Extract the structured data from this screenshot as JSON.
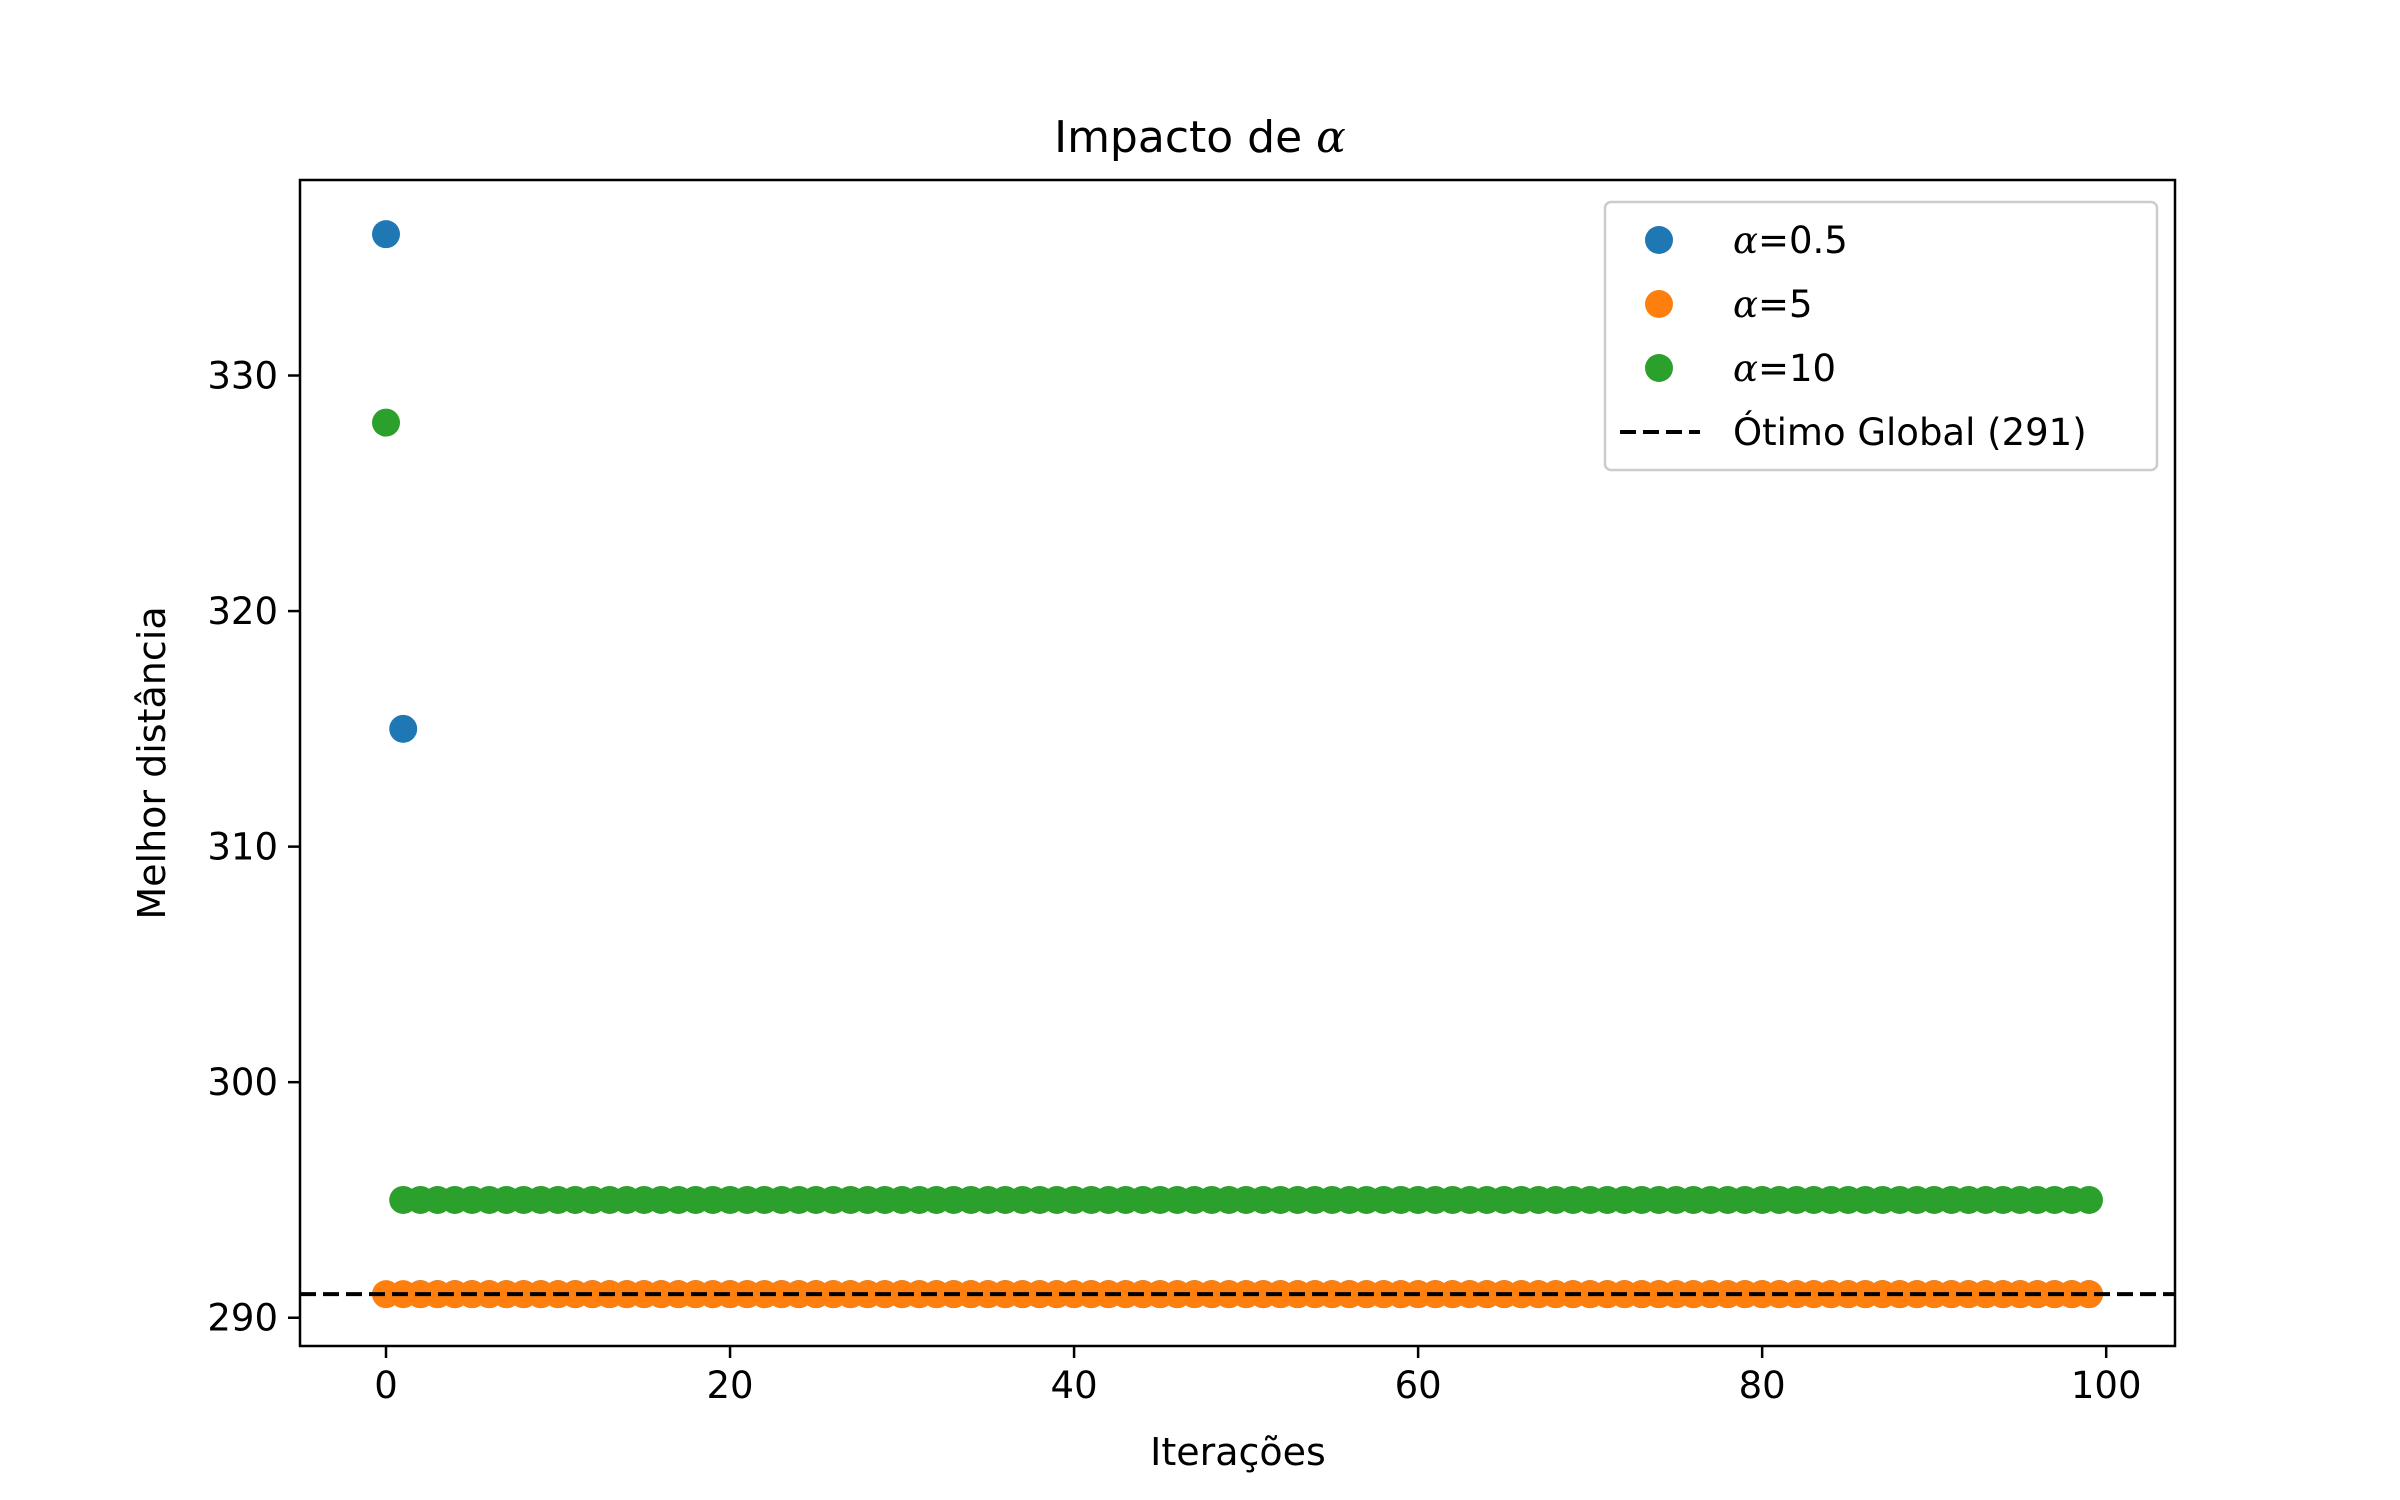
{
  "chart_data": {
    "type": "scatter",
    "title_prefix": "Impacto de ",
    "title_symbol": "α",
    "xlabel": "Iterações",
    "ylabel": "Melhor distância",
    "xlim": [
      -5,
      104
    ],
    "ylim": [
      288.8,
      338.3
    ],
    "x_ticks": [
      0,
      20,
      40,
      60,
      80,
      100
    ],
    "y_ticks": [
      290,
      300,
      310,
      320,
      330
    ],
    "grid": false,
    "legend_position": "top-right",
    "series": [
      {
        "symbol": "α",
        "name": "=0.5",
        "color": "#1f77b4",
        "x": [
          0,
          1
        ],
        "y": [
          336,
          315
        ],
        "constant_from": 2,
        "constant_to": 99,
        "constant_y": 291
      },
      {
        "symbol": "α",
        "name": "=5",
        "color": "#ff7f0e",
        "x": [],
        "y": [],
        "constant_from": 0,
        "constant_to": 99,
        "constant_y": 291
      },
      {
        "symbol": "α",
        "name": "=10",
        "color": "#2ca02c",
        "x": [
          0
        ],
        "y": [
          328
        ],
        "constant_from": 1,
        "constant_to": 99,
        "constant_y": 295
      }
    ],
    "reference_line": {
      "name": "Ótimo Global (291)",
      "y": 291,
      "color": "#000000",
      "style": "dashed"
    }
  }
}
